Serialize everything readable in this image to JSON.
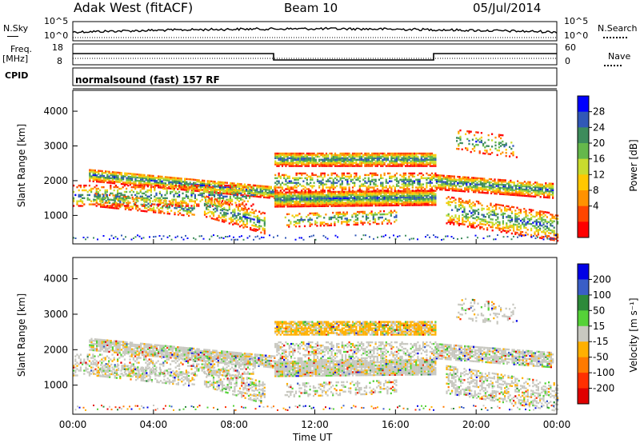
{
  "header": {
    "station": "Adak West (fitACF)",
    "beam": "Beam 10",
    "date": "05/Jul/2014"
  },
  "strips": {
    "nsky_label": "N.Sky",
    "nsearch_label": "N.Search",
    "freq_label_1": "Freq.",
    "freq_label_2": "[MHz]",
    "nave_label": "Nave",
    "cpid_label": "CPID",
    "cpid_text": "normalsound (fast) 157 RF",
    "noise_left_ticks": [
      "10^5",
      "10^0"
    ],
    "noise_right_ticks": [
      "10^5",
      "10^0"
    ],
    "freq_ticks": [
      "18",
      "8"
    ],
    "nave_ticks": [
      "60",
      "0"
    ]
  },
  "chart_data": [
    {
      "type": "heatmap",
      "name": "power",
      "ylabel": "Slant Range [km]",
      "xlim": [
        0,
        24
      ],
      "ylim": [
        180,
        4600
      ],
      "yticks": [
        "1000",
        "2000",
        "3000",
        "4000"
      ],
      "colorbar_label": "Power [dB]",
      "colorbar_ticks": [
        "4",
        "8",
        "12",
        "16",
        "20",
        "24",
        "28"
      ],
      "colorbar_colors": [
        "#0000ff",
        "#3158b7",
        "#3d8c5c",
        "#65b84b",
        "#c9dc2e",
        "#ffc800",
        "#ff9200",
        "#ff4600",
        "#ff0000"
      ]
    },
    {
      "type": "heatmap",
      "name": "velocity",
      "ylabel": "Slant Range [km]",
      "xlim": [
        0,
        24
      ],
      "ylim": [
        180,
        4600
      ],
      "yticks": [
        "1000",
        "2000",
        "3000",
        "4000"
      ],
      "colorbar_label": "Velocity [m s⁻¹]",
      "colorbar_ticks": [
        "200",
        "100",
        "50",
        "15",
        "-15",
        "-50",
        "-100",
        "-200"
      ],
      "colorbar_colors": [
        "#0000e6",
        "#3a5ec6",
        "#2d8a3a",
        "#55d238",
        "#c8c8c0",
        "#ffb000",
        "#ff7a00",
        "#ff3000",
        "#e00000"
      ]
    }
  ],
  "x_axis": {
    "ticks": [
      "00:00",
      "04:00",
      "08:00",
      "12:00",
      "16:00",
      "20:00",
      "00:00"
    ],
    "label": "Time UT"
  }
}
